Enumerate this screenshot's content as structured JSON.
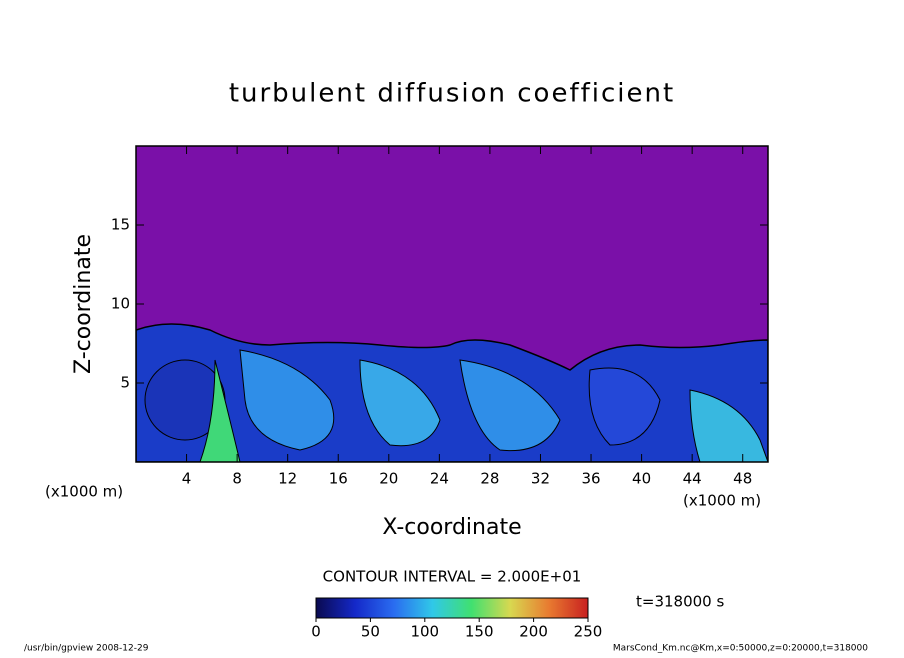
{
  "chart_data": {
    "type": "contour",
    "title": "turbulent diffusion coefficient",
    "x_label": "X-coordinate",
    "y_label": "Z-coordinate",
    "x_unit": "(x1000 m)",
    "xlim": [
      0,
      50
    ],
    "xticks": [
      4,
      8,
      12,
      16,
      20,
      24,
      28,
      32,
      36,
      40,
      44,
      48
    ],
    "ylim": [
      0,
      20
    ],
    "yticks": [
      5,
      10,
      15
    ],
    "contour_interval": "CONTOUR INTERVAL = 2.000E+01",
    "time": "t=318000 s",
    "colorbar": {
      "lim": [
        0,
        250
      ],
      "ticks": [
        0,
        50,
        100,
        150,
        200,
        250
      ],
      "colors": [
        "#0a0a50",
        "#1428c8",
        "#2a6cf0",
        "#30c8e8",
        "#40e070",
        "#d8d850",
        "#e87a30",
        "#c82020"
      ]
    },
    "footer_left": "/usr/bin/gpview   2008-12-29",
    "footer_right": "MarsCond_Km.nc@Km,x=0:50000,z=0:20000,t=318000"
  }
}
